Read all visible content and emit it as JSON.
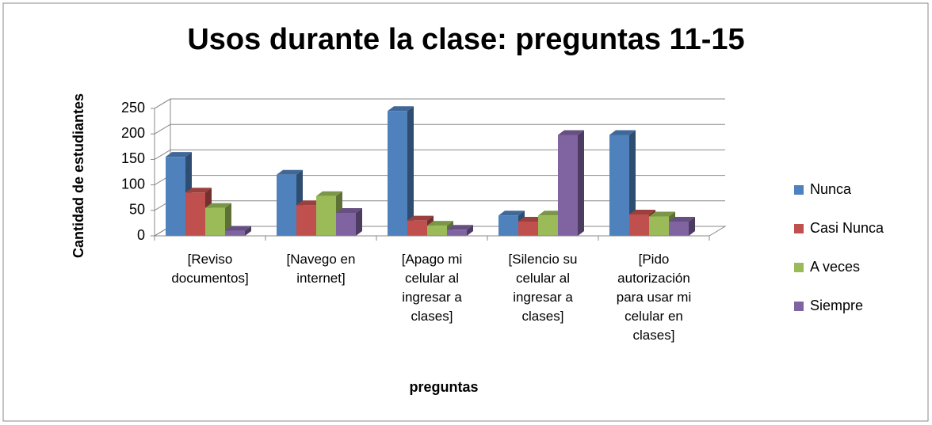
{
  "chart_data": {
    "type": "bar3d",
    "title": "Usos durante la clase: preguntas 11-15",
    "x_label": "preguntas",
    "y_label": "Cantidad de estudiantes",
    "categories": [
      "[Reviso documentos]",
      "[Navego en internet]",
      "[Apago mi celular al ingresar a clases]",
      "[Silencio su celular al ingresar a clases]",
      "[Pido autorización para usar mi celular en clases]"
    ],
    "series": [
      {
        "name": "Nunca",
        "color": "#4f81bd",
        "values": [
          155,
          120,
          245,
          40,
          198
        ]
      },
      {
        "name": "Casi Nunca",
        "color": "#c0504d",
        "values": [
          85,
          60,
          30,
          28,
          42
        ]
      },
      {
        "name": "A veces",
        "color": "#9bbb59",
        "values": [
          55,
          78,
          20,
          40,
          38
        ]
      },
      {
        "name": "Siempre",
        "color": "#8064a2",
        "values": [
          10,
          45,
          12,
          198,
          28
        ]
      }
    ],
    "ylim": [
      0,
      250
    ],
    "yticks": [
      0,
      50,
      100,
      150,
      200,
      250
    ],
    "grid": true,
    "legend": "right"
  }
}
